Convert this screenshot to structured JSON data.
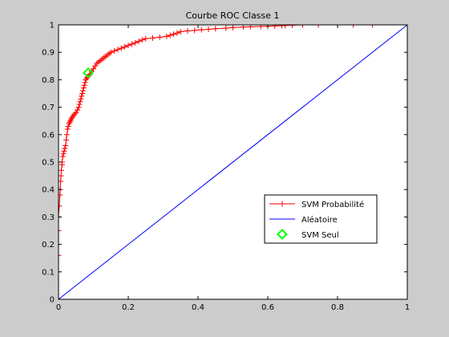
{
  "chart_data": {
    "type": "line",
    "title": "Courbe ROC Classe 1",
    "xlabel": "",
    "ylabel": "",
    "xlim": [
      0,
      1
    ],
    "ylim": [
      0,
      1
    ],
    "xticks": [
      "0",
      "0.2",
      "0.4",
      "0.6",
      "0.8",
      "1"
    ],
    "yticks": [
      "0",
      "0.1",
      "0.2",
      "0.3",
      "0.4",
      "0.5",
      "0.6",
      "0.7",
      "0.8",
      "0.9",
      "1"
    ],
    "grid": false,
    "legend_position": "lower-right",
    "series": [
      {
        "name": "SVM Probabilité",
        "color": "#ff0000",
        "marker": "plus",
        "x": [
          0,
          0,
          0,
          0.002,
          0.004,
          0.005,
          0.006,
          0.007,
          0.008,
          0.01,
          0.01,
          0.012,
          0.014,
          0.016,
          0.018,
          0.02,
          0.022,
          0.024,
          0.026,
          0.028,
          0.03,
          0.032,
          0.034,
          0.036,
          0.038,
          0.04,
          0.043,
          0.046,
          0.05,
          0.054,
          0.058,
          0.06,
          0.062,
          0.064,
          0.066,
          0.068,
          0.07,
          0.072,
          0.074,
          0.076,
          0.078,
          0.08,
          0.083,
          0.087,
          0.09,
          0.095,
          0.1,
          0.105,
          0.11,
          0.115,
          0.12,
          0.125,
          0.13,
          0.135,
          0.14,
          0.145,
          0.15,
          0.16,
          0.17,
          0.18,
          0.19,
          0.2,
          0.21,
          0.22,
          0.23,
          0.24,
          0.25,
          0.27,
          0.29,
          0.31,
          0.32,
          0.33,
          0.34,
          0.35,
          0.37,
          0.39,
          0.41,
          0.43,
          0.45,
          0.48,
          0.5,
          0.53,
          0.55,
          0.58,
          0.6,
          0.62,
          0.64,
          0.65,
          0.67,
          0.7,
          0.745,
          0.8,
          0.845,
          0.9,
          1
        ],
        "y": [
          0.16,
          0.25,
          0.3,
          0.34,
          0.38,
          0.4,
          0.43,
          0.45,
          0.47,
          0.49,
          0.5,
          0.52,
          0.53,
          0.54,
          0.55,
          0.56,
          0.58,
          0.6,
          0.62,
          0.63,
          0.64,
          0.645,
          0.65,
          0.655,
          0.66,
          0.665,
          0.67,
          0.675,
          0.68,
          0.69,
          0.7,
          0.71,
          0.72,
          0.73,
          0.74,
          0.75,
          0.76,
          0.77,
          0.78,
          0.79,
          0.8,
          0.805,
          0.81,
          0.815,
          0.82,
          0.83,
          0.84,
          0.85,
          0.86,
          0.865,
          0.87,
          0.875,
          0.88,
          0.885,
          0.89,
          0.895,
          0.9,
          0.905,
          0.91,
          0.915,
          0.92,
          0.925,
          0.93,
          0.935,
          0.94,
          0.945,
          0.95,
          0.952,
          0.955,
          0.958,
          0.962,
          0.966,
          0.97,
          0.975,
          0.978,
          0.98,
          0.982,
          0.984,
          0.986,
          0.988,
          0.99,
          0.992,
          0.993,
          0.994,
          0.995,
          0.996,
          0.997,
          0.998,
          0.999,
          1,
          1,
          1,
          1,
          1,
          1
        ]
      },
      {
        "name": "Aléatoire",
        "color": "#0000ff",
        "marker": "none",
        "x": [
          0,
          1
        ],
        "y": [
          0,
          1
        ]
      },
      {
        "name": "SVM Seul",
        "color": "#00ff00",
        "marker": "diamond",
        "x": [
          0.085
        ],
        "y": [
          0.825
        ]
      }
    ]
  }
}
